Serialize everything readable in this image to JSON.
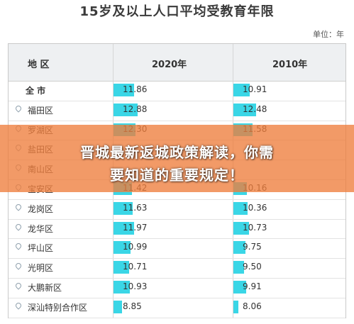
{
  "title": "15岁及以上人口平均受教育年限",
  "unit": "单位：年",
  "headers": {
    "region": "地 区",
    "y2020": "2020年",
    "y2010": "2010年"
  },
  "colors": {
    "bar2020": "#3ad6e6",
    "bar2010": "#3ad6e6",
    "banner": "#ee7e3c",
    "header_bg": "#eef0f2"
  },
  "chart_data": {
    "type": "table",
    "columns": [
      "地 区",
      "2020年",
      "2010年"
    ],
    "rows": [
      {
        "region": "全 市",
        "y2020": "11.86",
        "y2010": "10.91"
      },
      {
        "region": "福田区",
        "y2020": "12.88",
        "y2010": "12.48"
      },
      {
        "region": "罗湖区",
        "y2020": "12.30",
        "y2010": "11.58"
      },
      {
        "region": "盐田区",
        "y2020": "",
        "y2010": ""
      },
      {
        "region": "南山区",
        "y2020": "",
        "y2010": ""
      },
      {
        "region": "宝安区",
        "y2020": "11.42",
        "y2010": "10.16"
      },
      {
        "region": "龙岗区",
        "y2020": "11.63",
        "y2010": "10.36"
      },
      {
        "region": "龙华区",
        "y2020": "11.97",
        "y2010": "10.73"
      },
      {
        "region": "坪山区",
        "y2020": "10.99",
        "y2010": "9.75"
      },
      {
        "region": "光明区",
        "y2020": "10.71",
        "y2010": "9.50"
      },
      {
        "region": "大鹏新区",
        "y2020": "10.93",
        "y2010": "9.91"
      },
      {
        "region": "深汕特别合作区",
        "y2020": "8.85",
        "y2010": "8.06"
      }
    ]
  },
  "banner": {
    "line1": "晋城最新返城政策解读，你需",
    "line2": "要知道的重要规定！"
  }
}
